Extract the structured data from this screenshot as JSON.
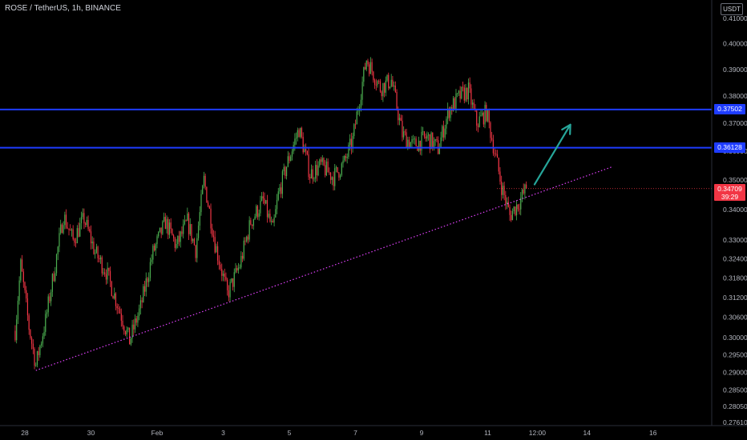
{
  "header": {
    "title": "ROSE / TetherUS, 1h, BINANCE"
  },
  "price_axis": {
    "unit": "USDT"
  },
  "current_price": {
    "value": "0.34709",
    "countdown": "39:29"
  },
  "levels": [
    {
      "label": "0.37502",
      "value": 0.37502,
      "color": "#1e3cff"
    },
    {
      "label": "0.36128",
      "value": 0.36128,
      "color": "#1e3cff"
    }
  ],
  "colors": {
    "bull": "#4caf50",
    "bear": "#f23645",
    "trendline": "#e040fb",
    "arrow": "#26a69a",
    "level": "#1e3cff",
    "current": "#f23645"
  },
  "chart_data": {
    "type": "candlestick",
    "title": "ROSE / TetherUS, 1h, BINANCE",
    "y_scale": "log",
    "ylim": [
      0.2749,
      0.413
    ],
    "y_ticks": [
      "0.41000",
      "0.40000",
      "0.39000",
      "0.38000",
      "0.37000",
      "0.36000",
      "0.35000",
      "0.34000",
      "0.33000",
      "0.32400",
      "0.31800",
      "0.31200",
      "0.30600",
      "0.30000",
      "0.29500",
      "0.29000",
      "0.28500",
      "0.28050",
      "0.27610"
    ],
    "x_ticks": [
      "28",
      "30",
      "Feb",
      "3",
      "5",
      "7",
      "9",
      "11",
      "12:00",
      "14",
      "16"
    ],
    "grid": false,
    "price_path": [
      {
        "x": "Jan 27 17:00",
        "y": 0.302
      },
      {
        "x": "Jan 27 21:00",
        "y": 0.322
      },
      {
        "x": "Jan 28 03:00",
        "y": 0.303
      },
      {
        "x": "Jan 28 08:00",
        "y": 0.292
      },
      {
        "x": "Jan 28 15:00",
        "y": 0.305
      },
      {
        "x": "Jan 28 22:00",
        "y": 0.322
      },
      {
        "x": "Jan 29 04:00",
        "y": 0.338
      },
      {
        "x": "Jan 29 11:00",
        "y": 0.33
      },
      {
        "x": "Jan 29 19:00",
        "y": 0.337
      },
      {
        "x": "Jan 30 03:00",
        "y": 0.326
      },
      {
        "x": "Jan 30 11:00",
        "y": 0.32
      },
      {
        "x": "Jan 30 20:00",
        "y": 0.309
      },
      {
        "x": "Jan 31 04:00",
        "y": 0.299
      },
      {
        "x": "Jan 31 12:00",
        "y": 0.309
      },
      {
        "x": "Jan 31 21:00",
        "y": 0.326
      },
      {
        "x": "Feb 1 06:00",
        "y": 0.336
      },
      {
        "x": "Feb 1 14:00",
        "y": 0.328
      },
      {
        "x": "Feb 1 22:00",
        "y": 0.336
      },
      {
        "x": "Feb 2 04:00",
        "y": 0.327
      },
      {
        "x": "Feb 2 10:00",
        "y": 0.35
      },
      {
        "x": "Feb 2 18:00",
        "y": 0.329
      },
      {
        "x": "Feb 3 03:00",
        "y": 0.313
      },
      {
        "x": "Feb 3 12:00",
        "y": 0.322
      },
      {
        "x": "Feb 3 20:00",
        "y": 0.336
      },
      {
        "x": "Feb 4 05:00",
        "y": 0.343
      },
      {
        "x": "Feb 4 12:00",
        "y": 0.333
      },
      {
        "x": "Feb 4 16:00",
        "y": 0.345
      },
      {
        "x": "Feb 4 22:00",
        "y": 0.355
      },
      {
        "x": "Feb 5 07:00",
        "y": 0.368
      },
      {
        "x": "Feb 5 15:00",
        "y": 0.352
      },
      {
        "x": "Feb 5 23:00",
        "y": 0.355
      },
      {
        "x": "Feb 6 08:00",
        "y": 0.351
      },
      {
        "x": "Feb 6 16:00",
        "y": 0.356
      },
      {
        "x": "Feb 6 22:00",
        "y": 0.364
      },
      {
        "x": "Feb 7 04:00",
        "y": 0.382
      },
      {
        "x": "Feb 7 08:00",
        "y": 0.394
      },
      {
        "x": "Feb 7 18:00",
        "y": 0.383
      },
      {
        "x": "Feb 8 02:00",
        "y": 0.386
      },
      {
        "x": "Feb 8 10:00",
        "y": 0.366
      },
      {
        "x": "Feb 8 18:00",
        "y": 0.362
      },
      {
        "x": "Feb 9 04:00",
        "y": 0.365
      },
      {
        "x": "Feb 9 12:00",
        "y": 0.361
      },
      {
        "x": "Feb 9 20:00",
        "y": 0.375
      },
      {
        "x": "Feb 10 04:00",
        "y": 0.38
      },
      {
        "x": "Feb 10 10:00",
        "y": 0.382
      },
      {
        "x": "Feb 10 16:00",
        "y": 0.37
      },
      {
        "x": "Feb 10 23:00",
        "y": 0.374
      },
      {
        "x": "Feb 11 05:00",
        "y": 0.36
      },
      {
        "x": "Feb 11 10:00",
        "y": 0.348
      },
      {
        "x": "Feb 11 16:00",
        "y": 0.338
      },
      {
        "x": "Feb 11 22:00",
        "y": 0.342
      },
      {
        "x": "Feb 12 04:00",
        "y": 0.3471
      }
    ],
    "horizontal_levels": [
      0.37502,
      0.36128
    ],
    "trendline": {
      "style": "dotted",
      "from": {
        "x": "Jan 28 08:00",
        "y": 0.2905
      },
      "to": {
        "x": "Feb 14 18:00",
        "y": 0.3545
      }
    },
    "arrow": {
      "from": {
        "x": "Feb 12 10:00",
        "y": 0.3485
      },
      "to": {
        "x": "Feb 13 12:00",
        "y": 0.3695
      }
    }
  }
}
